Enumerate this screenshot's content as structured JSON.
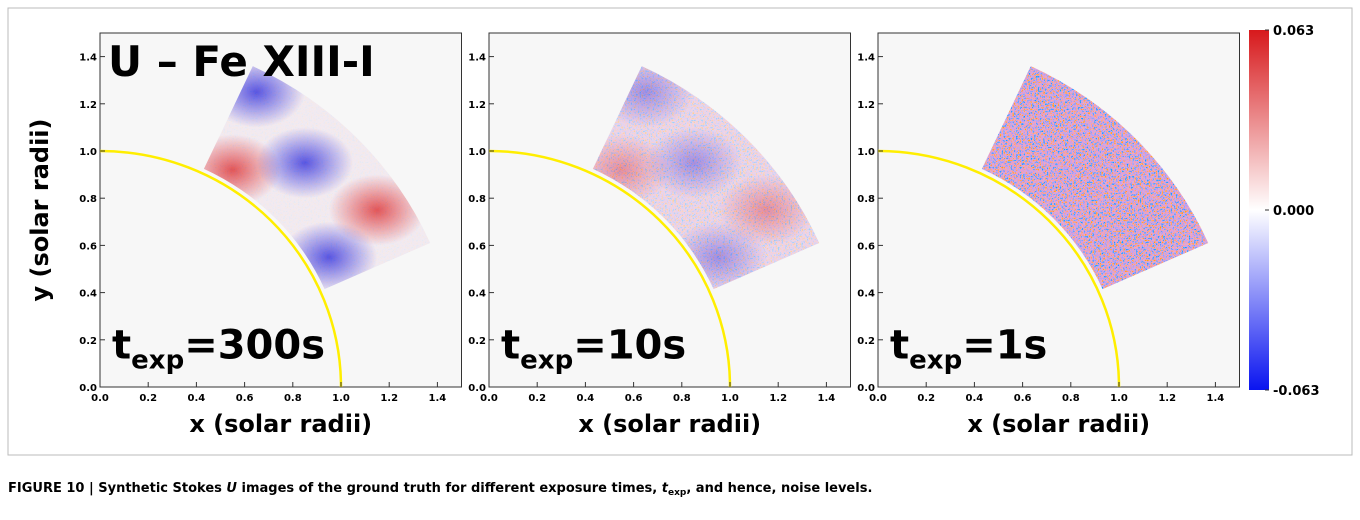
{
  "figure": {
    "title": "U – Fe XIII-I",
    "axes": {
      "xlabel": "x (solar radii)",
      "ylabel": "y (solar radii)",
      "xlim": [
        0,
        1.5
      ],
      "ylim": [
        0,
        1.5
      ],
      "xticks": [
        {
          "value": 0,
          "label": "0.0"
        },
        {
          "value": 0.2,
          "label": "0.2"
        },
        {
          "value": 0.4,
          "label": "0.4"
        },
        {
          "value": 0.6,
          "label": "0.6"
        },
        {
          "value": 0.8,
          "label": "0.8"
        },
        {
          "value": 1,
          "label": "1.0"
        },
        {
          "value": 1.2,
          "label": "1.2"
        },
        {
          "value": 1.4,
          "label": "1.4"
        }
      ],
      "yticks": [
        {
          "value": 0,
          "label": "0.0"
        },
        {
          "value": 0.2,
          "label": "0.2"
        },
        {
          "value": 0.4,
          "label": "0.4"
        },
        {
          "value": 0.6,
          "label": "0.6"
        },
        {
          "value": 0.8,
          "label": "0.8"
        },
        {
          "value": 1,
          "label": "1.0"
        },
        {
          "value": 1.2,
          "label": "1.2"
        },
        {
          "value": 1.4,
          "label": "1.4"
        }
      ]
    },
    "panels": [
      {
        "t": "t",
        "sub": "exp",
        "rest": "=300s"
      },
      {
        "t": "t",
        "sub": "exp",
        "rest": "=10s"
      },
      {
        "t": "t",
        "sub": "exp",
        "rest": "=1s"
      }
    ],
    "colorbar": {
      "lim": [
        -0.063,
        0.063
      ],
      "ticks": [
        0.063,
        {
          "value": 0,
          "label": "0.000"
        },
        -0.063
      ]
    },
    "caption": {
      "lead": "FIGURE 10 | Synthetic Stokes ",
      "u": "U",
      "mid": " images of the ground truth for different exposure times, ",
      "t": "t",
      "sub": "exp",
      "end": ", and hence, noise levels."
    }
  }
}
